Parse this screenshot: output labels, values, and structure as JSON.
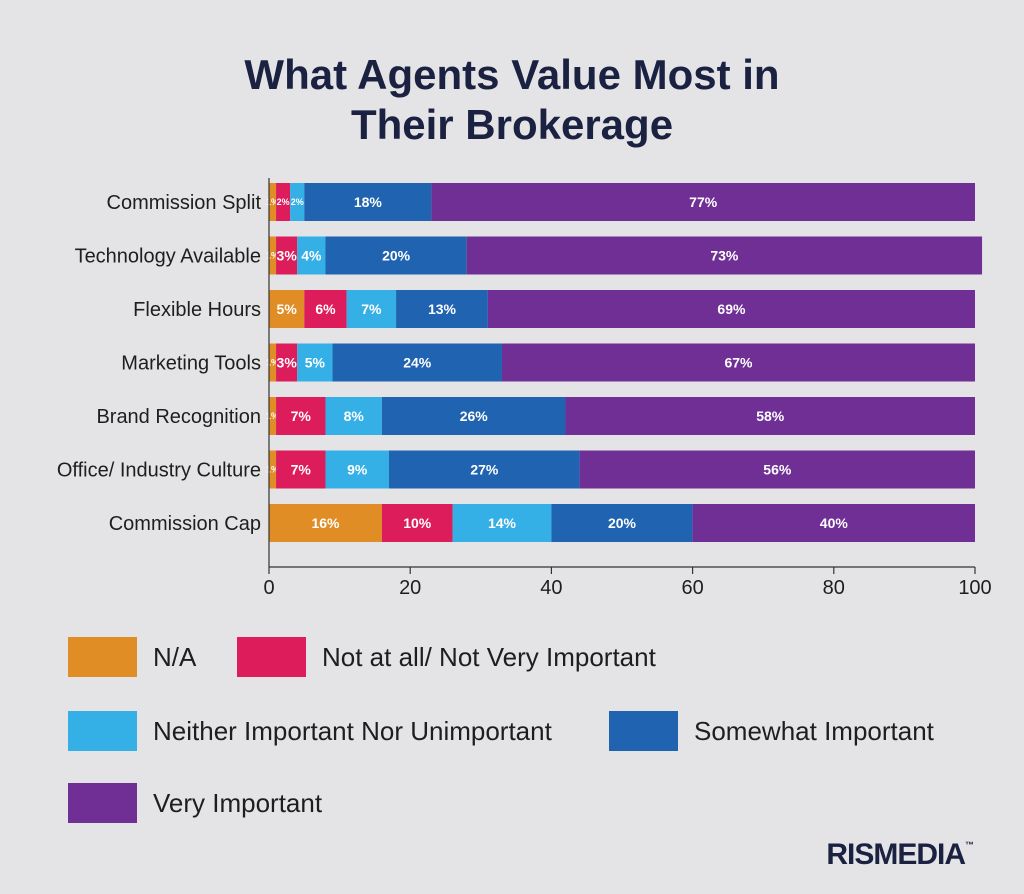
{
  "title_line1": "What Agents Value Most in",
  "title_line2": "Their Brokerage",
  "logo": "RISMEDIA",
  "logo_mark": "™",
  "chart_data": {
    "type": "bar",
    "orientation": "horizontal",
    "stacked": true,
    "categories": [
      "Commission Split",
      "Technology Available",
      "Flexible Hours",
      "Marketing Tools",
      "Brand Recognition",
      "Office/ Industry Culture",
      "Commission Cap"
    ],
    "series": [
      {
        "name": "N/A",
        "color": "#e18d26",
        "values": [
          1,
          1,
          5,
          1,
          1,
          1,
          16
        ]
      },
      {
        "name": "Not at all/ Not Very Important",
        "color": "#dc1c5b",
        "values": [
          2,
          3,
          6,
          3,
          7,
          7,
          10
        ]
      },
      {
        "name": "Neither Important Nor Unimportant",
        "color": "#35b0e6",
        "values": [
          2,
          4,
          7,
          5,
          8,
          9,
          14
        ]
      },
      {
        "name": "Somewhat Important",
        "color": "#2063b0",
        "values": [
          18,
          20,
          13,
          24,
          26,
          27,
          20
        ]
      },
      {
        "name": "Very Important",
        "color": "#6f2f95",
        "values": [
          77,
          73,
          69,
          67,
          58,
          56,
          40
        ]
      }
    ],
    "xlim": [
      0,
      100
    ],
    "xticks": [
      0,
      20,
      40,
      60,
      80,
      100
    ],
    "label_suffix": "%",
    "legend_position": "bottom",
    "grid": false
  }
}
